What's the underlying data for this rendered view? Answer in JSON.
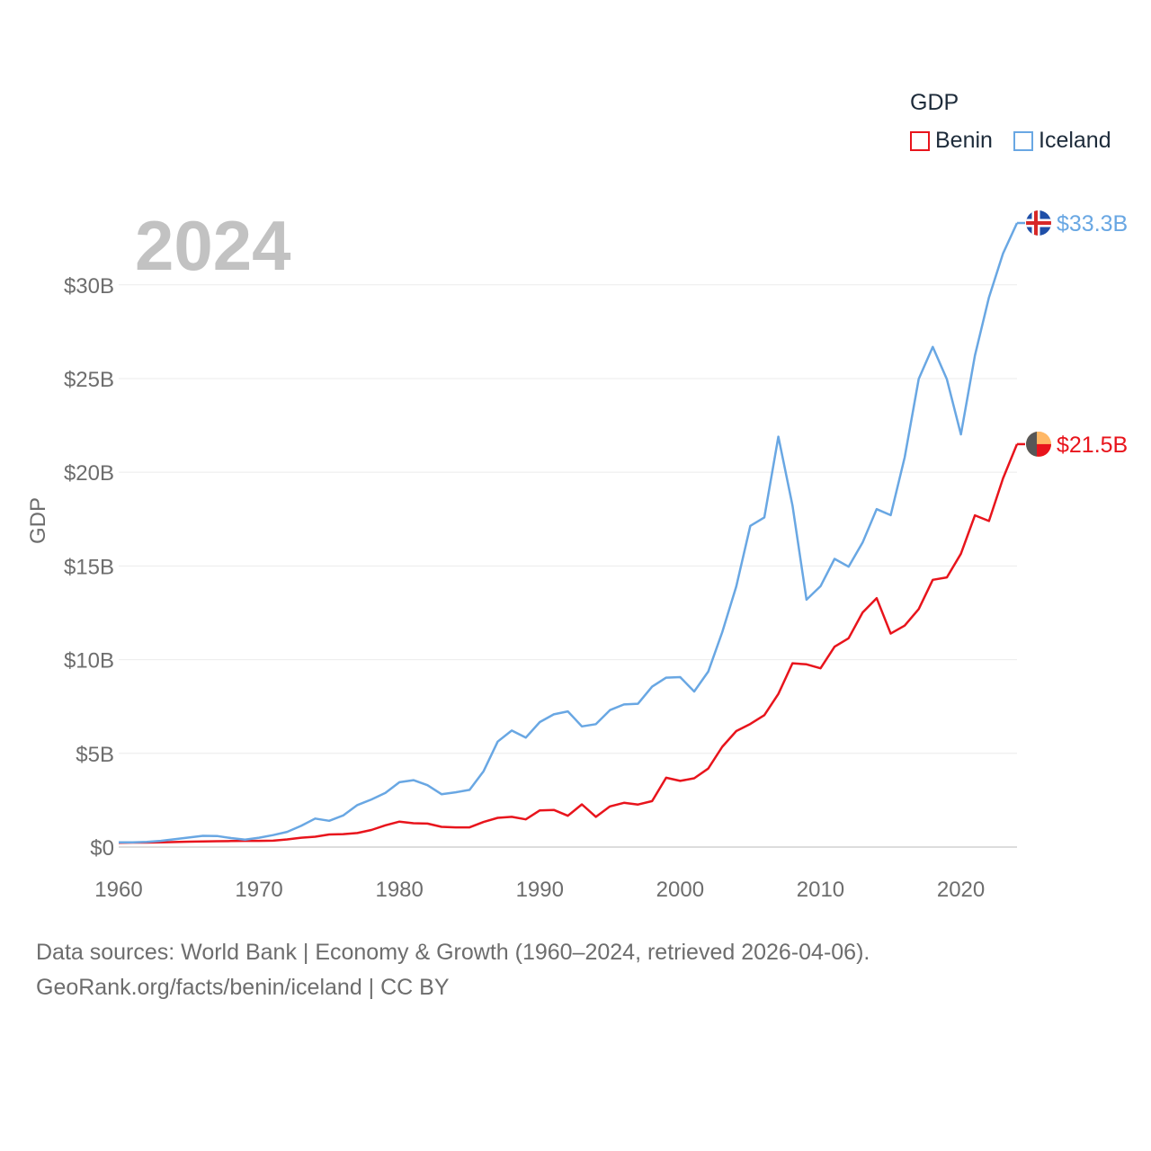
{
  "year_label": "2024",
  "legend": {
    "title": "GDP",
    "items": [
      {
        "name": "Benin",
        "color": "#e8141c"
      },
      {
        "name": "Iceland",
        "color": "#69a7e3"
      }
    ]
  },
  "footer": {
    "line1": "Data sources: World Bank | Economy & Growth (1960–2024, retrieved 2026-04-06).",
    "line2": "GeoRank.org/facts/benin/iceland | CC BY"
  },
  "chart_data": {
    "type": "line",
    "title": "",
    "xlabel": "",
    "ylabel": "GDP",
    "xlim": [
      1960,
      2024
    ],
    "ylim": [
      0,
      33.3
    ],
    "grid": true,
    "legend_position": "top-right",
    "x_ticks": [
      1960,
      1970,
      1980,
      1990,
      2000,
      2010,
      2020
    ],
    "x_tick_labels": [
      "1960",
      "1970",
      "1980",
      "1990",
      "2000",
      "2010",
      "2020"
    ],
    "y_ticks": [
      0,
      5,
      10,
      15,
      20,
      25,
      30
    ],
    "y_tick_labels": [
      "$0",
      "$5B",
      "$10B",
      "$15B",
      "$20B",
      "$25B",
      "$30B"
    ],
    "x": [
      1960,
      1961,
      1962,
      1963,
      1964,
      1965,
      1966,
      1967,
      1968,
      1969,
      1970,
      1971,
      1972,
      1973,
      1974,
      1975,
      1976,
      1977,
      1978,
      1979,
      1980,
      1981,
      1982,
      1983,
      1984,
      1985,
      1986,
      1987,
      1988,
      1989,
      1990,
      1991,
      1992,
      1993,
      1994,
      1995,
      1996,
      1997,
      1998,
      1999,
      2000,
      2001,
      2002,
      2003,
      2004,
      2005,
      2006,
      2007,
      2008,
      2009,
      2010,
      2011,
      2012,
      2013,
      2014,
      2015,
      2016,
      2017,
      2018,
      2019,
      2020,
      2021,
      2022,
      2023,
      2024
    ],
    "series": [
      {
        "name": "Benin",
        "color": "#e8141c",
        "end_label": "$21.5B",
        "values": [
          0.23,
          0.24,
          0.24,
          0.25,
          0.27,
          0.29,
          0.3,
          0.31,
          0.32,
          0.33,
          0.33,
          0.34,
          0.41,
          0.5,
          0.55,
          0.67,
          0.69,
          0.75,
          0.91,
          1.16,
          1.36,
          1.27,
          1.25,
          1.08,
          1.05,
          1.05,
          1.34,
          1.56,
          1.61,
          1.48,
          1.96,
          1.98,
          1.67,
          2.28,
          1.61,
          2.17,
          2.36,
          2.27,
          2.45,
          3.7,
          3.53,
          3.67,
          4.19,
          5.35,
          6.19,
          6.57,
          7.04,
          8.17,
          9.81,
          9.75,
          9.54,
          10.69,
          11.14,
          12.52,
          13.28,
          11.39,
          11.82,
          12.7,
          14.26,
          14.39,
          15.65,
          17.7,
          17.4,
          19.67,
          21.5
        ]
      },
      {
        "name": "Iceland",
        "color": "#69a7e3",
        "end_label": "$33.3B",
        "values": [
          0.25,
          0.25,
          0.28,
          0.33,
          0.42,
          0.51,
          0.6,
          0.59,
          0.48,
          0.4,
          0.5,
          0.64,
          0.81,
          1.13,
          1.52,
          1.4,
          1.69,
          2.24,
          2.54,
          2.89,
          3.46,
          3.57,
          3.3,
          2.82,
          2.92,
          3.05,
          4.05,
          5.63,
          6.22,
          5.84,
          6.67,
          7.08,
          7.24,
          6.44,
          6.56,
          7.31,
          7.61,
          7.65,
          8.56,
          9.04,
          9.07,
          8.3,
          9.36,
          11.47,
          13.91,
          17.14,
          17.59,
          21.9,
          18.23,
          13.2,
          13.92,
          15.38,
          14.96,
          16.25,
          18.03,
          17.71,
          20.8,
          24.98,
          26.69,
          24.96,
          22.02,
          26.23,
          29.33,
          31.67,
          33.3
        ]
      }
    ]
  }
}
